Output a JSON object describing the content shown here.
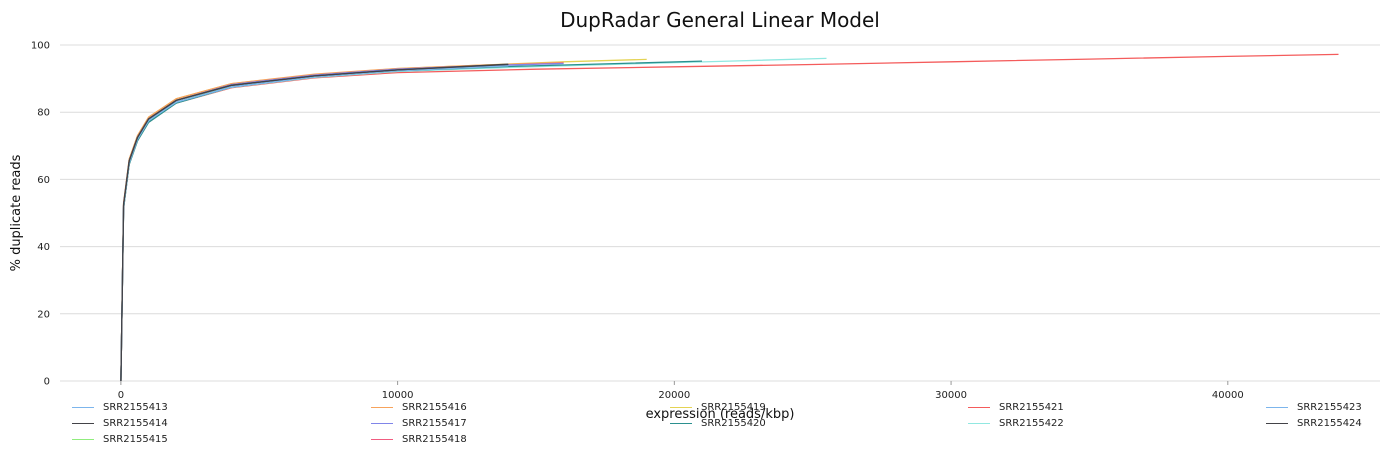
{
  "chart_data": {
    "type": "line",
    "title": "DupRadar General Linear Model",
    "xlabel": "expression (reads/kbp)",
    "ylabel": "% duplicate reads",
    "xlim": [
      -2200,
      45500
    ],
    "ylim": [
      0,
      100
    ],
    "x_ticks": [
      0,
      10000,
      20000,
      30000,
      40000
    ],
    "y_ticks": [
      0,
      20,
      40,
      60,
      80,
      100
    ],
    "grid": "horizontal",
    "legend_position": "bottom",
    "series": [
      {
        "name": "SRR2155413",
        "color": "#7cb5ec",
        "x": [
          0,
          100,
          300,
          600,
          1000,
          2000,
          4000,
          7000,
          10000,
          14000
        ],
        "y": [
          0,
          52,
          65,
          72,
          77.5,
          83,
          87.5,
          90.5,
          92.3,
          93.8
        ]
      },
      {
        "name": "SRR2155414",
        "color": "#434348",
        "x": [
          0,
          100,
          300,
          600,
          1000,
          2000,
          4000,
          7000,
          10000,
          14000
        ],
        "y": [
          0,
          52.5,
          65.5,
          72.5,
          78,
          83.5,
          88,
          90.8,
          92.6,
          94.3
        ]
      },
      {
        "name": "SRR2155415",
        "color": "#90ed7d",
        "x": [
          0,
          100,
          300,
          600,
          1000,
          2000,
          4000,
          7000,
          10000,
          13000
        ],
        "y": [
          0,
          52,
          65,
          72,
          77.5,
          83,
          87.8,
          90.6,
          92.3,
          93.6
        ]
      },
      {
        "name": "SRR2155416",
        "color": "#f7a35c",
        "x": [
          0,
          100,
          300,
          600,
          1000,
          2000,
          4000,
          7000,
          10000,
          13000,
          16000
        ],
        "y": [
          0,
          53,
          66,
          73,
          78.5,
          84,
          88.5,
          91.3,
          93,
          94,
          94.8
        ]
      },
      {
        "name": "SRR2155417",
        "color": "#8085e9",
        "x": [
          0,
          100,
          300,
          600,
          1000,
          2000,
          4000,
          7000,
          10000,
          13000,
          16000
        ],
        "y": [
          0,
          52.5,
          65.5,
          72.5,
          78,
          83.5,
          88.2,
          91,
          92.8,
          93.8,
          94.5
        ]
      },
      {
        "name": "SRR2155418",
        "color": "#f15c80",
        "x": [
          0,
          100,
          300,
          600,
          1000,
          2000,
          4000,
          7000,
          10000,
          13000,
          16000
        ],
        "y": [
          0,
          52.5,
          65.5,
          72.5,
          78,
          83.5,
          88.2,
          91,
          92.8,
          93.8,
          94.6
        ]
      },
      {
        "name": "SRR2155419",
        "color": "#e4d354",
        "x": [
          0,
          100,
          300,
          600,
          1000,
          2000,
          4000,
          7000,
          10000,
          13000,
          16000,
          19000
        ],
        "y": [
          0,
          53,
          66,
          73,
          78.5,
          84,
          88.5,
          91.2,
          93,
          94,
          95,
          95.7
        ]
      },
      {
        "name": "SRR2155420",
        "color": "#2b908f",
        "x": [
          0,
          100,
          300,
          600,
          1000,
          2000,
          4000,
          7000,
          10000,
          14000,
          18000,
          21000
        ],
        "y": [
          0,
          51.5,
          64.5,
          71.5,
          77,
          82.7,
          87.5,
          90.5,
          92.3,
          93.6,
          94.5,
          95.2
        ]
      },
      {
        "name": "SRR2155421",
        "color": "#f45b5b",
        "x": [
          0,
          100,
          300,
          600,
          1000,
          2000,
          4000,
          7000,
          10000,
          15000,
          20000,
          25000,
          30000,
          35000,
          40000,
          44000
        ],
        "y": [
          0,
          51.5,
          64.5,
          71.5,
          77,
          82.7,
          87.3,
          90.2,
          91.8,
          92.8,
          93.5,
          94.2,
          95,
          95.8,
          96.6,
          97.2
        ]
      },
      {
        "name": "SRR2155422",
        "color": "#91e8e1",
        "x": [
          0,
          100,
          300,
          600,
          1000,
          2000,
          4000,
          7000,
          10000,
          14000,
          18000,
          22000,
          25500
        ],
        "y": [
          0,
          51.5,
          64.5,
          71.5,
          77,
          82.7,
          87.4,
          90.4,
          92.1,
          93.3,
          94.3,
          95.2,
          96
        ]
      },
      {
        "name": "SRR2155423",
        "color": "#7cb5ec",
        "x": [
          0,
          100,
          300,
          600,
          1000,
          2000,
          4000,
          7000,
          10000,
          14000
        ],
        "y": [
          0,
          52,
          65,
          72,
          77.5,
          83,
          87.6,
          90.6,
          92.4,
          93.9
        ]
      },
      {
        "name": "SRR2155424",
        "color": "#434348",
        "x": [
          0,
          100,
          300,
          600,
          1000,
          2000,
          4000,
          7000,
          10000,
          14000
        ],
        "y": [
          0,
          52.5,
          65.5,
          72.5,
          78,
          83.5,
          88,
          90.8,
          92.6,
          94.2
        ]
      }
    ]
  }
}
